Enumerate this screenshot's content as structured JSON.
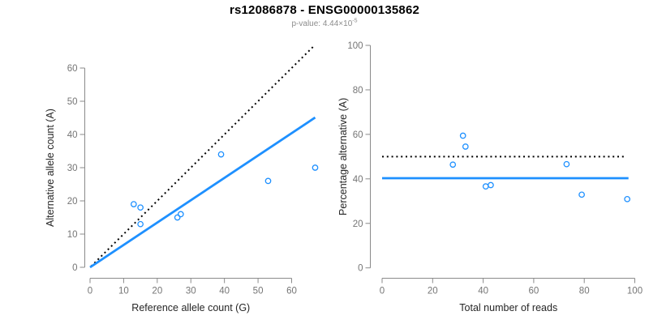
{
  "header": {
    "title": "rs12086878 - ENSG00000135862",
    "subtitle_prefix": "p-value: 4.44×10",
    "subtitle_exponent": "-5"
  },
  "colors": {
    "accent_blue": "#1E90FF",
    "dotted_black": "#000000",
    "axis_line": "#8a8a8a",
    "tick_label": "#757575",
    "axis_title": "#262626",
    "title_text": "#000000",
    "subtitle_text": "#8c8c8c",
    "background": "#ffffff"
  },
  "chart_data": {
    "type": "scatter",
    "figure_title": "rs12086878 - ENSG00000135862",
    "figure_subtitle": "p-value: 4.44×10^-5",
    "p_value": 4.44e-05,
    "legend_position": "none",
    "panels": [
      {
        "name": "allele-counts",
        "type": "scatter",
        "xlabel": "Reference allele count (G)",
        "ylabel": "Alternative allele count (A)",
        "xticks": [
          0,
          10,
          20,
          30,
          40,
          50,
          60
        ],
        "yticks": [
          0,
          10,
          20,
          30,
          40,
          50,
          60
        ],
        "xlim": [
          0,
          67
        ],
        "ylim": [
          0,
          67
        ],
        "grid": false,
        "point_style": "open-circle",
        "points": [
          [
            13,
            19
          ],
          [
            15,
            18
          ],
          [
            15,
            13
          ],
          [
            26,
            15
          ],
          [
            27,
            16
          ],
          [
            39,
            34
          ],
          [
            53,
            26
          ],
          [
            67,
            30
          ]
        ],
        "lines": [
          {
            "name": "identity-line",
            "style": "dotted",
            "color": "#000000",
            "from": [
              0.3,
              0.3
            ],
            "to": [
              66.8,
              66.8
            ]
          },
          {
            "name": "fitted-ratio-line",
            "style": "solid",
            "color": "#1E90FF",
            "from": [
              0,
              0
            ],
            "to": [
              67,
              45.1
            ]
          }
        ]
      },
      {
        "name": "percentage-vs-coverage",
        "type": "scatter",
        "xlabel": "Total number of reads",
        "ylabel": "Percentage alternative (A)",
        "xticks": [
          0,
          20,
          40,
          60,
          80,
          100
        ],
        "yticks": [
          0,
          20,
          40,
          60,
          80,
          100
        ],
        "xlim": [
          0,
          100
        ],
        "ylim": [
          0,
          100
        ],
        "grid": false,
        "point_style": "open-circle",
        "points": [
          [
            32,
            59.4
          ],
          [
            33,
            54.5
          ],
          [
            28,
            46.4
          ],
          [
            41,
            36.6
          ],
          [
            43,
            37.2
          ],
          [
            73,
            46.6
          ],
          [
            79,
            32.9
          ],
          [
            97,
            30.9
          ]
        ],
        "lines": [
          {
            "name": "expected-50-percent-line",
            "style": "dotted",
            "color": "#000000",
            "from": [
              0,
              50
            ],
            "to": [
              96,
              50
            ]
          },
          {
            "name": "mean-percentage-line",
            "style": "solid",
            "color": "#1E90FF",
            "from": [
              0,
              40.3
            ],
            "to": [
              97.5,
              40.3
            ]
          }
        ]
      }
    ]
  }
}
